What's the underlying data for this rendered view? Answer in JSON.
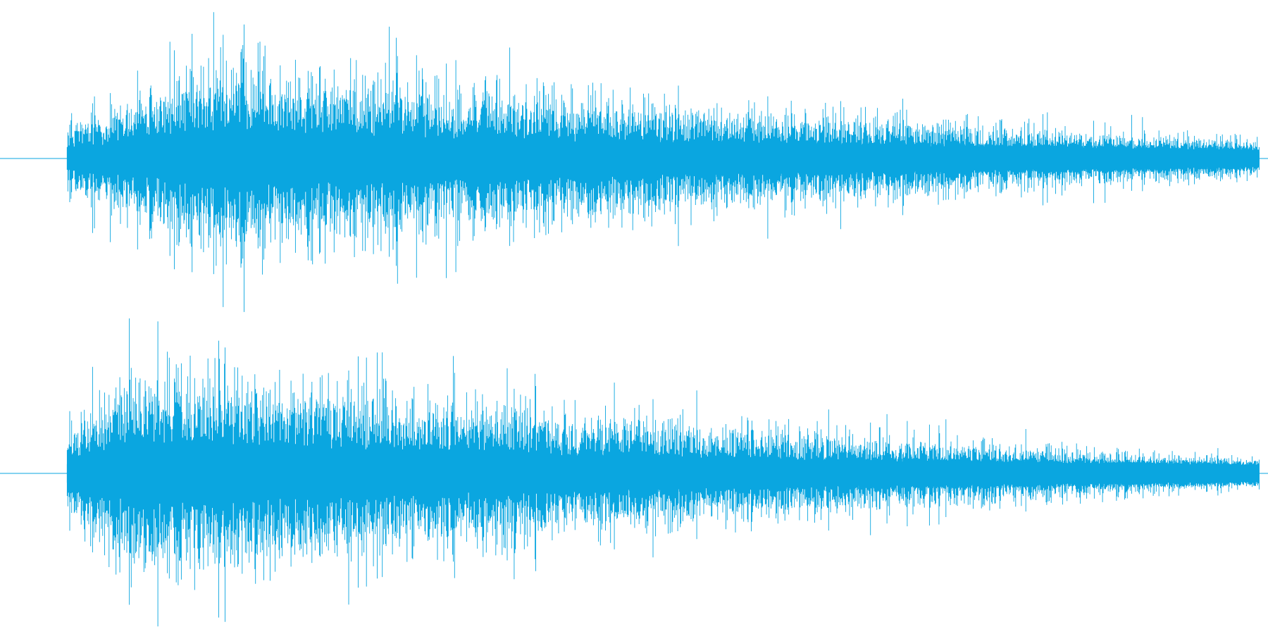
{
  "waveform": {
    "color": "#0aa6e0",
    "background": "#ffffff",
    "channels": [
      {
        "name": "channel-1",
        "envelope": {
          "start_fraction": 0.053,
          "attack_peak_fraction": 0.19,
          "peak_amplitude": 0.8,
          "tail_amplitude": 0.15
        }
      },
      {
        "name": "channel-2",
        "envelope": {
          "start_fraction": 0.053,
          "attack_peak_fraction": 0.11,
          "peak_amplitude": 0.88,
          "tail_amplitude": 0.11
        }
      }
    ]
  }
}
